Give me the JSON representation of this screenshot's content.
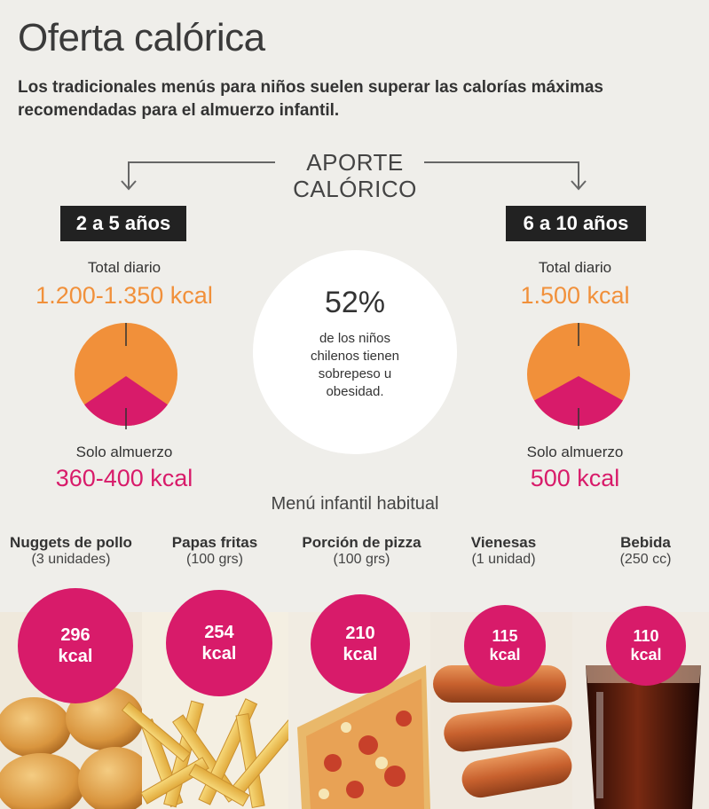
{
  "header": {
    "title": "Oferta calórica",
    "subtitle_line1": "Los tradicionales menús para niños suelen superar las calorías máximas",
    "subtitle_line2": "recomendadas para el almuerzo infantil."
  },
  "aporte": {
    "line1": "APORTE",
    "line2": "CALÓRICO"
  },
  "groups": [
    {
      "badge": "2 a 5 años",
      "total_label": "Total diario",
      "total_value": "1.200-1.350 kcal",
      "lunch_label": "Solo almuerzo",
      "lunch_value": "360-400 kcal",
      "lunch_fraction": 0.3
    },
    {
      "badge": "6 a 10 años",
      "total_label": "Total diario",
      "total_value": "1.500 kcal",
      "lunch_label": "Solo almuerzo",
      "lunch_value": "500 kcal",
      "lunch_fraction": 0.33
    }
  ],
  "stat": {
    "percent": "52%",
    "line1": "de los niños",
    "line2": "chilenos tienen",
    "line3": "sobrepeso u",
    "line4": "obesidad."
  },
  "menu": {
    "title": "Menú infantil habitual",
    "items": [
      {
        "name": "Nuggets de pollo",
        "qty": "(3 unidades)",
        "value": "296",
        "unit": "kcal",
        "icon": "nuggets-photo"
      },
      {
        "name": "Papas fritas",
        "qty": "(100 grs)",
        "value": "254",
        "unit": "kcal",
        "icon": "fries-photo"
      },
      {
        "name": "Porción de pizza",
        "qty": "(100 grs)",
        "value": "210",
        "unit": "kcal",
        "icon": "pizza-photo"
      },
      {
        "name": "Vienesas",
        "qty": "(1 unidad)",
        "value": "115",
        "unit": "kcal",
        "icon": "sausage-photo"
      },
      {
        "name": "Bebida",
        "qty": "(250 cc)",
        "value": "110",
        "unit": "kcal",
        "icon": "soda-photo"
      }
    ]
  },
  "colors": {
    "orange": "#f1903a",
    "pink": "#d81b6a",
    "dark": "#222222",
    "background": "#efeeea"
  }
}
